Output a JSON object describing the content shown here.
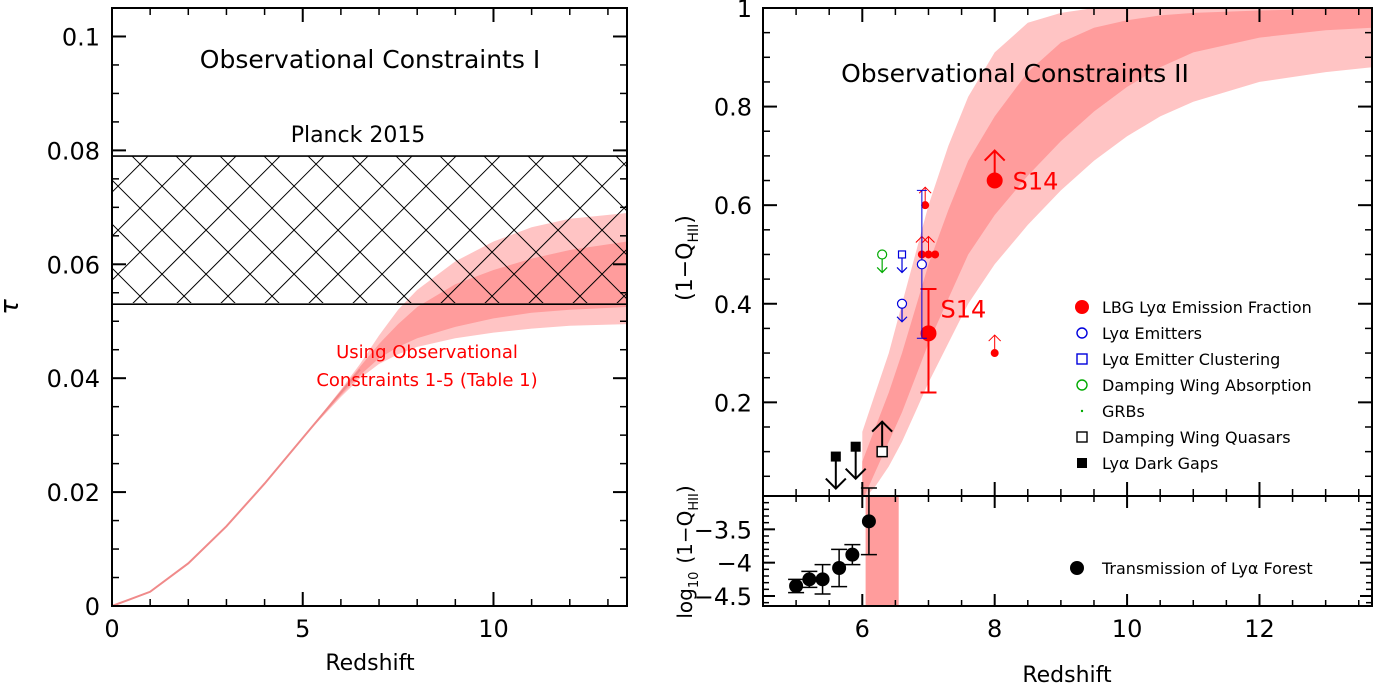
{
  "colors": {
    "band_outer": "#ffc4c4",
    "band_inner": "#ff9c9c",
    "line_pink": "#f08a8a",
    "red": "#ff0000",
    "blue": "#0000dd",
    "green": "#00aa00",
    "black": "#000000"
  },
  "chart_data": [
    {
      "type": "area",
      "title": "Observational Constraints I",
      "xlabel": "Redshift",
      "ylabel": "τ",
      "xlim": [
        0,
        13.5
      ],
      "ylim": [
        0,
        0.105
      ],
      "xticks": [
        0,
        5,
        10
      ],
      "yticks": [
        0,
        0.02,
        0.04,
        0.06,
        0.08,
        0.1
      ],
      "ytick_labels": [
        "0",
        "0.02",
        "0.04",
        "0.06",
        "0.08",
        "0.1"
      ],
      "planck_band": {
        "label": "Planck 2015",
        "ymin": 0.053,
        "ymax": 0.079
      },
      "annotation": [
        "Using Observational",
        "Constraints 1-5 (Table 1)"
      ],
      "tau_curve": {
        "x": [
          0,
          1,
          2,
          3,
          4,
          5,
          6,
          6.5,
          7,
          7.5,
          8,
          9,
          10,
          11,
          12,
          13.5
        ],
        "median": [
          0,
          0.0025,
          0.0075,
          0.014,
          0.0215,
          0.0295,
          0.0375,
          0.0415,
          0.045,
          0.048,
          0.0505,
          0.054,
          0.0565,
          0.058,
          0.059,
          0.0595
        ],
        "inner_low": [
          0,
          0.0025,
          0.0075,
          0.014,
          0.0215,
          0.0295,
          0.037,
          0.0405,
          0.0435,
          0.0455,
          0.047,
          0.049,
          0.0505,
          0.0515,
          0.052,
          0.0525
        ],
        "inner_high": [
          0,
          0.0025,
          0.0075,
          0.014,
          0.0215,
          0.0295,
          0.0378,
          0.042,
          0.046,
          0.0495,
          0.0525,
          0.0565,
          0.059,
          0.061,
          0.0625,
          0.064
        ],
        "outer_low": [
          0,
          0.0025,
          0.0075,
          0.014,
          0.0215,
          0.0295,
          0.0367,
          0.04,
          0.0425,
          0.0442,
          0.0455,
          0.047,
          0.048,
          0.0487,
          0.0492,
          0.0495
        ],
        "outer_high": [
          0,
          0.0025,
          0.0075,
          0.014,
          0.0215,
          0.0295,
          0.038,
          0.0425,
          0.0475,
          0.052,
          0.0555,
          0.0605,
          0.064,
          0.0665,
          0.068,
          0.069
        ]
      }
    },
    {
      "type": "scatter",
      "title": "Observational Constraints II",
      "xlabel": "Redshift",
      "ylabel": "(1−Q_HII)",
      "ylabel_main": "(1−Q",
      "ylabel_sub": "HII",
      "ylabel_close": ")",
      "xlim": [
        4.5,
        13.7
      ],
      "ylim": [
        0.01,
        1.0
      ],
      "xticks": [
        6,
        8,
        10,
        12
      ],
      "yticks": [
        0.2,
        0.4,
        0.6,
        0.8,
        1
      ],
      "ytick_labels": [
        "0.2",
        "0.4",
        "0.6",
        "0.8",
        "1"
      ],
      "band": {
        "x": [
          6.0,
          6.2,
          6.4,
          6.6,
          6.8,
          7.0,
          7.3,
          7.6,
          8.0,
          8.5,
          9.0,
          9.5,
          10.0,
          10.5,
          11.0,
          12.0,
          13.0,
          13.7
        ],
        "outer_low": [
          0.0,
          0.03,
          0.07,
          0.12,
          0.18,
          0.24,
          0.32,
          0.4,
          0.48,
          0.56,
          0.63,
          0.69,
          0.74,
          0.78,
          0.81,
          0.85,
          0.87,
          0.88
        ],
        "inner_low": [
          0.0,
          0.06,
          0.12,
          0.18,
          0.25,
          0.32,
          0.41,
          0.5,
          0.58,
          0.66,
          0.73,
          0.79,
          0.84,
          0.88,
          0.91,
          0.94,
          0.955,
          0.96
        ],
        "inner_high": [
          0.08,
          0.15,
          0.22,
          0.3,
          0.39,
          0.48,
          0.59,
          0.69,
          0.78,
          0.87,
          0.93,
          0.96,
          0.975,
          0.985,
          0.99,
          0.995,
          0.998,
          1.0
        ],
        "outer_high": [
          0.14,
          0.22,
          0.3,
          0.4,
          0.5,
          0.6,
          0.72,
          0.82,
          0.91,
          0.97,
          0.99,
          1.0,
          1.0,
          1.0,
          1.0,
          1.0,
          1.0,
          1.0
        ]
      },
      "lbg_large": [
        {
          "x": 7.0,
          "y": 0.34,
          "yerr_low": 0.22,
          "yerr_high": 0.43,
          "label": "S14"
        },
        {
          "x": 8.0,
          "y": 0.65,
          "lower_limit": true,
          "label": "S14"
        }
      ],
      "lbg_small": [
        {
          "x": 6.9,
          "y": 0.5,
          "lower_limit": true
        },
        {
          "x": 7.0,
          "y": 0.5,
          "lower_limit": true
        },
        {
          "x": 7.1,
          "y": 0.5
        },
        {
          "x": 6.95,
          "y": 0.6,
          "lower_limit": true
        },
        {
          "x": 8.0,
          "y": 0.3,
          "lower_limit": true
        }
      ],
      "lae": [
        {
          "x": 6.6,
          "y": 0.4,
          "upper_limit": true
        },
        {
          "x": 6.9,
          "y": 0.48,
          "yerr_low": 0.33,
          "yerr_high": 0.63
        }
      ],
      "lae_clustering": [
        {
          "x": 6.6,
          "y": 0.5,
          "upper_limit": true
        }
      ],
      "damping_wing_absorption": [
        {
          "x": 6.3,
          "y": 0.5,
          "upper_limit": true
        }
      ],
      "damping_wing_quasars": [
        {
          "x": 6.3,
          "y": 0.1,
          "lower_limit": true
        }
      ],
      "dark_gaps": [
        {
          "x": 5.6,
          "y": 0.09,
          "upper_limit": true
        },
        {
          "x": 5.9,
          "y": 0.11,
          "upper_limit": true
        }
      ],
      "legend": [
        {
          "label": "LBG Lyα Emission Fraction",
          "marker": "filled-circle-large",
          "color": "#ff0000"
        },
        {
          "label": "Lyα Emitters",
          "marker": "open-circle",
          "color": "#0000dd"
        },
        {
          "label": "Lyα Emitter Clustering",
          "marker": "open-square",
          "color": "#0000dd"
        },
        {
          "label": "Damping Wing Absorption",
          "marker": "open-circle",
          "color": "#00aa00"
        },
        {
          "label": "GRBs",
          "marker": "dot",
          "color": "#00aa00"
        },
        {
          "label": "Damping Wing Quasars",
          "marker": "open-square",
          "color": "#000000"
        },
        {
          "label": "Lyα Dark Gaps",
          "marker": "filled-square",
          "color": "#000000"
        }
      ],
      "legend_placement": "lower-right"
    },
    {
      "type": "scatter",
      "xlabel": "Redshift",
      "ylabel_prefix": "log",
      "ylabel_prefix_sub": "10",
      "ylabel_main": "(1−Q",
      "ylabel_sub": "HII",
      "ylabel_close": ")",
      "xlim": [
        4.5,
        13.7
      ],
      "ylim": [
        -4.65,
        -3.0
      ],
      "xticks": [
        6,
        8,
        10,
        12
      ],
      "xtick_labels": [
        "6",
        "8",
        "10",
        "12"
      ],
      "yticks": [
        -3.5,
        -4,
        -4.5
      ],
      "ytick_labels": [
        "−3.5",
        "−4",
        "−4.5"
      ],
      "band_x_range": [
        6.05,
        6.55
      ],
      "forest_points": [
        {
          "x": 5.0,
          "y": -4.35,
          "err": 0.1
        },
        {
          "x": 5.2,
          "y": -4.25,
          "err": 0.12
        },
        {
          "x": 5.4,
          "y": -4.25,
          "err": 0.22
        },
        {
          "x": 5.65,
          "y": -4.08,
          "err": 0.28
        },
        {
          "x": 5.85,
          "y": -3.88,
          "err": 0.15
        },
        {
          "x": 6.1,
          "y": -3.38,
          "err": 0.5
        }
      ],
      "legend": [
        {
          "label": "Transmission of Lyα Forest",
          "marker": "filled-circle",
          "color": "#000000"
        }
      ]
    }
  ]
}
